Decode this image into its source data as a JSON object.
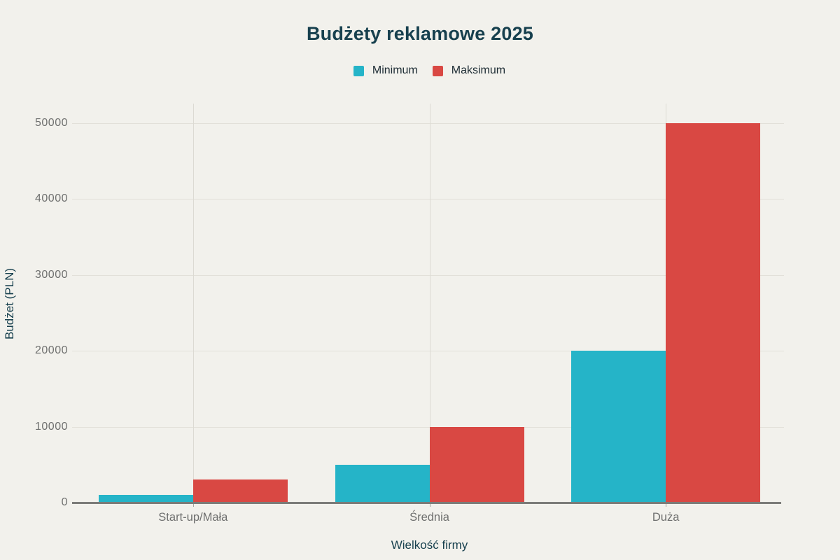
{
  "chart_data": {
    "type": "bar",
    "title": "Budżety reklamowe 2025",
    "xlabel": "Wielkość firmy",
    "ylabel": "Budżet (PLN)",
    "categories": [
      "Start-up/Mała",
      "Średnia",
      "Duża"
    ],
    "series": [
      {
        "name": "Minimum",
        "color": "#25b4c8",
        "values": [
          1000,
          5000,
          20000
        ]
      },
      {
        "name": "Maksimum",
        "color": "#d94843",
        "values": [
          3000,
          10000,
          50000
        ]
      }
    ],
    "ylim": [
      0,
      50000
    ],
    "ytick_step": 10000,
    "ytick_labels": [
      "0",
      "10000",
      "20000",
      "30000",
      "40000",
      "50000"
    ],
    "grid": true,
    "legend_position": "top",
    "colors": {
      "background": "#f2f1ec",
      "title_text": "#17404e",
      "tick_text": "#6f706f",
      "legend_text": "#1d2c34",
      "gridline": "#e2e0d9",
      "axis_line": "#7c7c79"
    }
  }
}
